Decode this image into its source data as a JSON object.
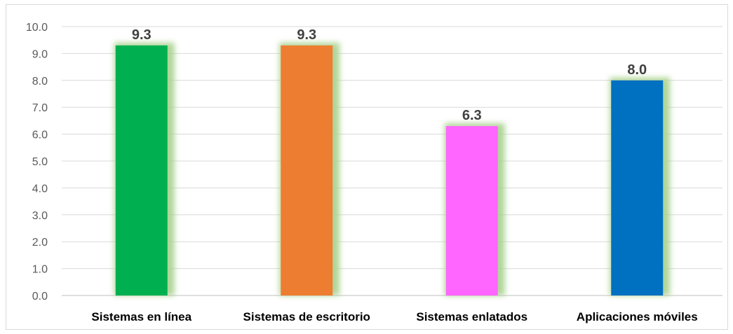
{
  "chart_data": {
    "type": "bar",
    "categories": [
      "Sistemas en línea",
      "Sistemas de escritorio",
      "Sistemas enlatados",
      "Aplicaciones móviles"
    ],
    "values": [
      9.3,
      9.3,
      6.3,
      8.0
    ],
    "data_labels": [
      "9.3",
      "9.3",
      "6.3",
      "8.0"
    ],
    "bar_colors": [
      "#00b050",
      "#ed7d31",
      "#ff66ff",
      "#0070c0"
    ],
    "glow_color": "#a9d18e",
    "title": "",
    "xlabel": "",
    "ylabel": "",
    "ylim": [
      0,
      10
    ],
    "y_ticks": [
      "0.0",
      "1.0",
      "2.0",
      "3.0",
      "4.0",
      "5.0",
      "6.0",
      "7.0",
      "8.0",
      "9.0",
      "10.0"
    ],
    "grid": true,
    "legend": "none"
  }
}
